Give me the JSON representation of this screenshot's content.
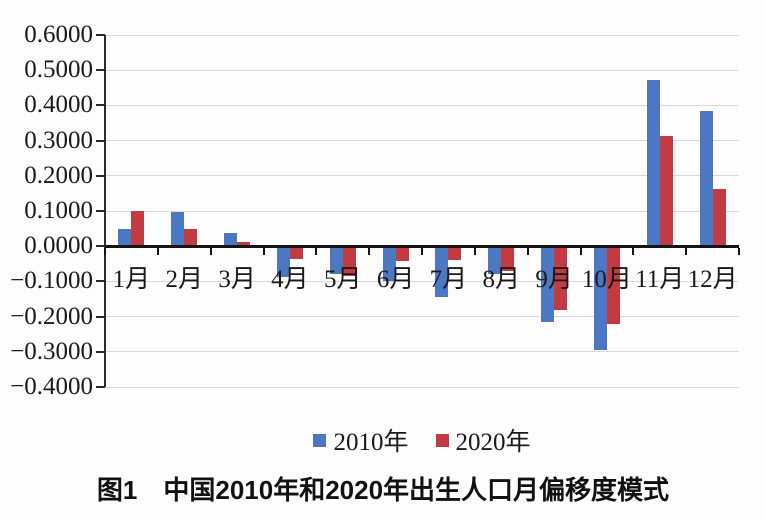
{
  "chart_data": {
    "type": "bar",
    "title": "图1　中国2010年和2020年出生人口月偏移度模式",
    "categories": [
      "1月",
      "2月",
      "3月",
      "4月",
      "5月",
      "6月",
      "7月",
      "8月",
      "9月",
      "10月",
      "11月",
      "12月"
    ],
    "series": [
      {
        "name": "2010年",
        "color": "#4C78C3",
        "values": [
          0.05,
          0.098,
          0.038,
          -0.088,
          -0.08,
          -0.098,
          -0.145,
          -0.078,
          -0.215,
          -0.295,
          0.472,
          0.385
        ]
      },
      {
        "name": "2020年",
        "color": "#C23B43",
        "values": [
          0.1,
          0.05,
          0.012,
          -0.035,
          -0.085,
          -0.042,
          -0.04,
          -0.07,
          -0.18,
          -0.22,
          0.313,
          0.163
        ]
      }
    ],
    "xlabel": "",
    "ylabel": "",
    "ylim": [
      -0.4,
      0.6
    ],
    "y_tick_labels": [
      "0.6000",
      "0.5000",
      "0.4000",
      "0.3000",
      "0.2000",
      "0.1000",
      "0.0000",
      "−0.1000",
      "−0.2000",
      "−0.3000",
      "−0.4000"
    ],
    "grid": "horizontal",
    "grid_color": "#d9d9d9",
    "axis_color": "#141414",
    "legend_position": "bottom-center"
  }
}
